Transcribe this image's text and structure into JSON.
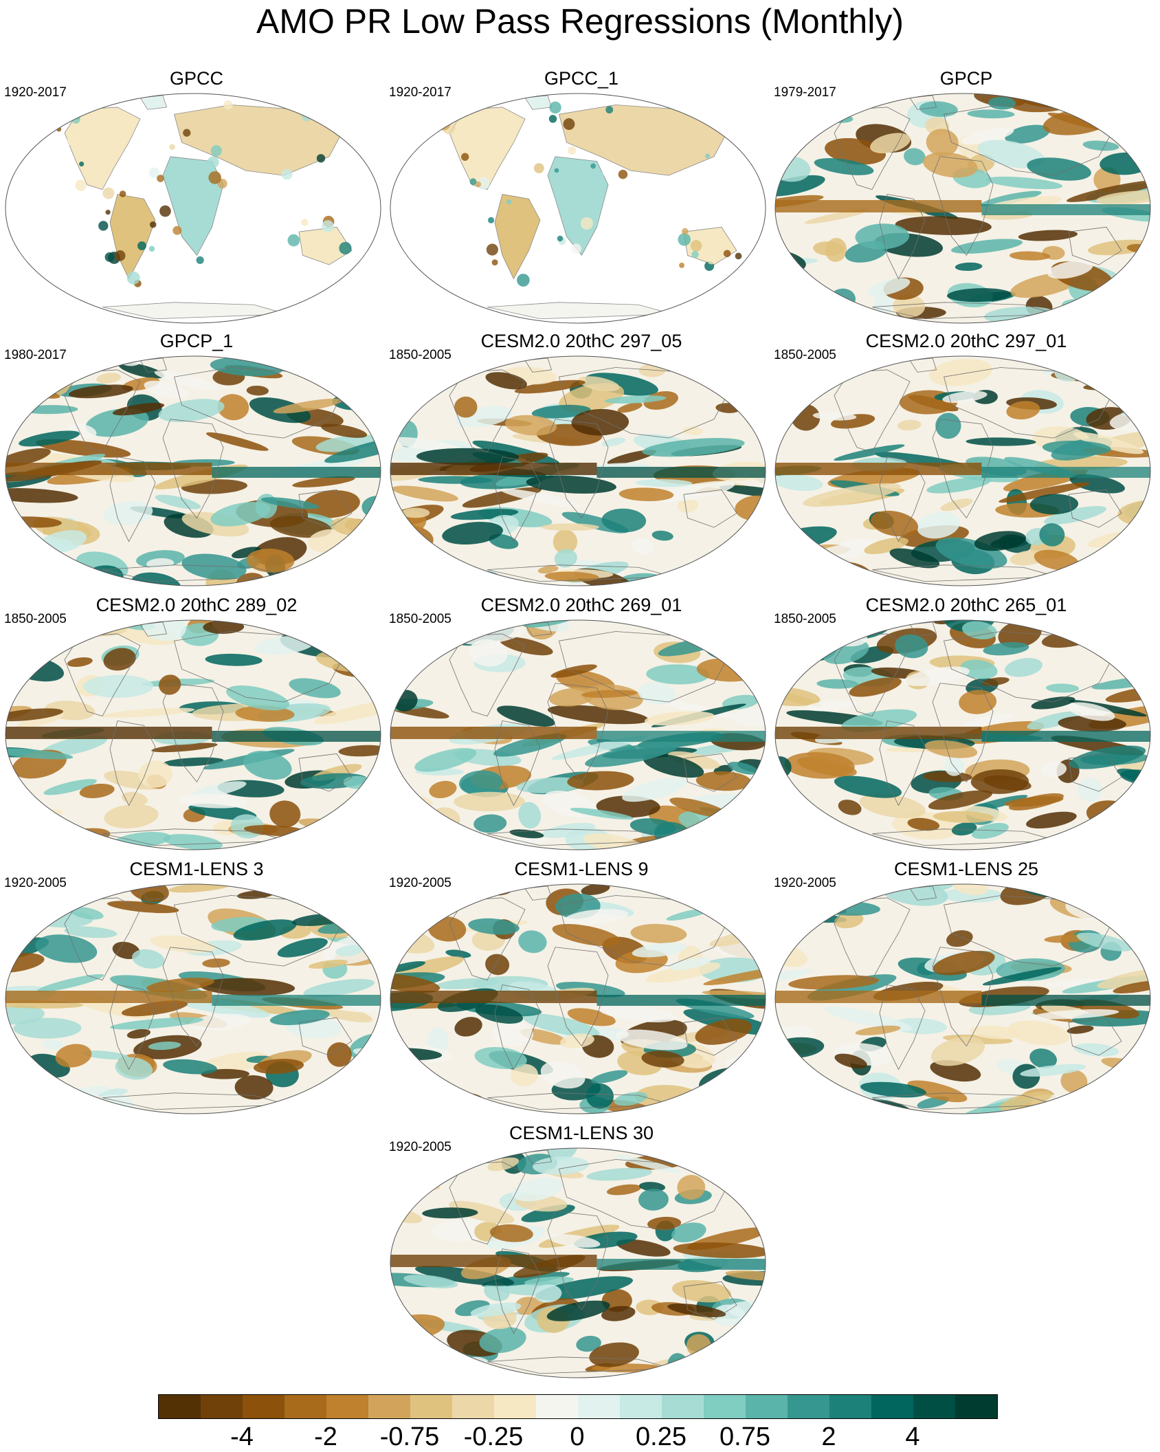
{
  "title": "AMO PR Low Pass Regressions (Monthly)",
  "panels": [
    {
      "name": "GPCC",
      "period": "1920-2017",
      "coverage": "land",
      "seed": 11
    },
    {
      "name": "GPCC_1",
      "period": "1920-2017",
      "coverage": "land",
      "seed": 12
    },
    {
      "name": "GPCP",
      "period": "1979-2017",
      "coverage": "global",
      "seed": 13
    },
    {
      "name": "GPCP_1",
      "period": "1980-2017",
      "coverage": "global",
      "seed": 14
    },
    {
      "name": "CESM2.0 20thC 297_05",
      "period": "1850-2005",
      "coverage": "global",
      "seed": 15
    },
    {
      "name": "CESM2.0 20thC 297_01",
      "period": "1850-2005",
      "coverage": "global",
      "seed": 16
    },
    {
      "name": "CESM2.0 20thC 289_02",
      "period": "1850-2005",
      "coverage": "global",
      "seed": 17
    },
    {
      "name": "CESM2.0 20thC 269_01",
      "period": "1850-2005",
      "coverage": "global",
      "seed": 18
    },
    {
      "name": "CESM2.0 20thC 265_01",
      "period": "1850-2005",
      "coverage": "global",
      "seed": 19
    },
    {
      "name": "CESM1-LENS 3",
      "period": "1920-2005",
      "coverage": "global",
      "seed": 20
    },
    {
      "name": "CESM1-LENS 9",
      "period": "1920-2005",
      "coverage": "global",
      "seed": 21
    },
    {
      "name": "CESM1-LENS 25",
      "period": "1920-2005",
      "coverage": "global",
      "seed": 22
    },
    {
      "name": "CESM1-LENS 30",
      "period": "1920-2005",
      "coverage": "global",
      "seed": 23
    }
  ],
  "colorbar": {
    "colors": [
      "#543005",
      "#70420a",
      "#8c510a",
      "#a86b1c",
      "#bf812d",
      "#d2a45b",
      "#dfc27d",
      "#ebd7a8",
      "#f6e8c3",
      "#f5f5f0",
      "#e2f2ef",
      "#c7eae5",
      "#a6dcd4",
      "#80cdc1",
      "#5ab4a9",
      "#35978f",
      "#1c8179",
      "#01665e",
      "#004f45",
      "#003c30"
    ],
    "labels": [
      {
        "text": "-4",
        "boundary": 2
      },
      {
        "text": "-2",
        "boundary": 4
      },
      {
        "text": "-0.75",
        "boundary": 6
      },
      {
        "text": "-0.25",
        "boundary": 8
      },
      {
        "text": "0",
        "boundary": 10
      },
      {
        "text": "0.25",
        "boundary": 12
      },
      {
        "text": "0.75",
        "boundary": 14
      },
      {
        "text": "2",
        "boundary": 16
      },
      {
        "text": "4",
        "boundary": 18
      }
    ]
  }
}
